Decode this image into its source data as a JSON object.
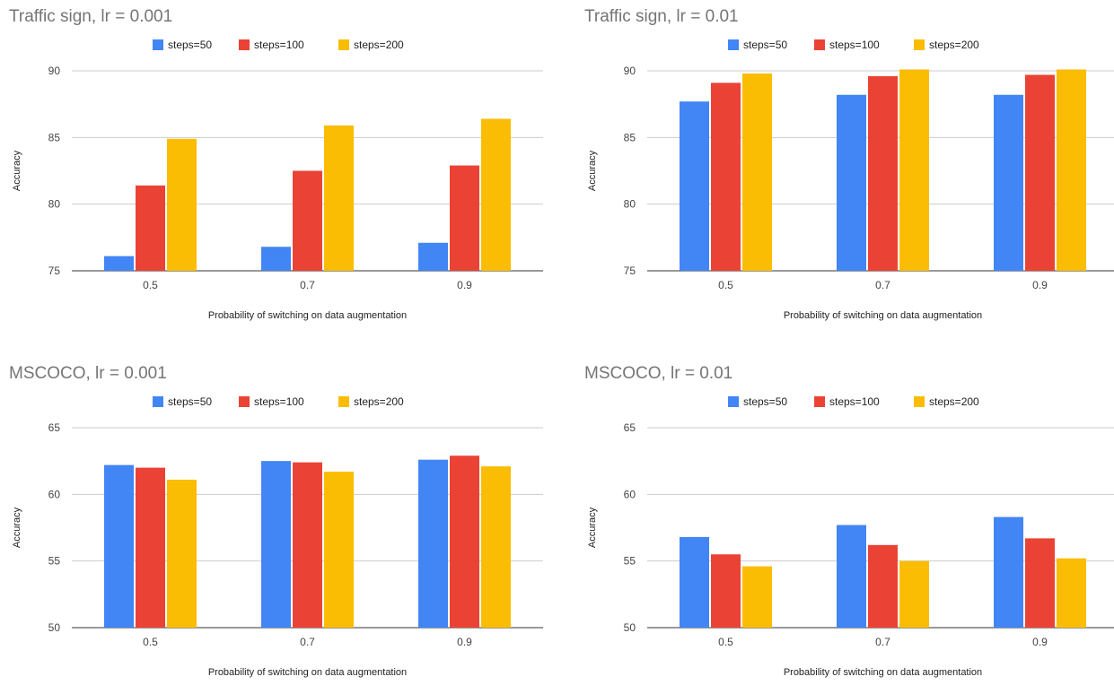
{
  "chart_data": [
    {
      "type": "bar",
      "title": "Traffic sign, lr = 0.001",
      "xlabel": "Probability of switching on data augmentation",
      "ylabel": "Accuracy",
      "categories": [
        "0.5",
        "0.7",
        "0.9"
      ],
      "ylim": [
        75,
        90
      ],
      "yticks": [
        75,
        80,
        85,
        90
      ],
      "grid": true,
      "legend_position": "top",
      "series": [
        {
          "name": "steps=50",
          "color": "#4285f4",
          "values": [
            76.1,
            76.8,
            77.1
          ]
        },
        {
          "name": "steps=100",
          "color": "#ea4335",
          "values": [
            81.4,
            82.5,
            82.9
          ]
        },
        {
          "name": "steps=200",
          "color": "#fbbc04",
          "values": [
            84.9,
            85.9,
            86.4
          ]
        }
      ]
    },
    {
      "type": "bar",
      "title": "Traffic sign, lr = 0.01",
      "xlabel": "Probability of switching on data augmentation",
      "ylabel": "Accuracy",
      "categories": [
        "0.5",
        "0.7",
        "0.9"
      ],
      "ylim": [
        75,
        90
      ],
      "yticks": [
        75,
        80,
        85,
        90
      ],
      "grid": true,
      "legend_position": "top",
      "series": [
        {
          "name": "steps=50",
          "color": "#4285f4",
          "values": [
            87.7,
            88.2,
            88.2
          ]
        },
        {
          "name": "steps=100",
          "color": "#ea4335",
          "values": [
            89.1,
            89.6,
            89.7
          ]
        },
        {
          "name": "steps=200",
          "color": "#fbbc04",
          "values": [
            89.8,
            90.1,
            90.1
          ]
        }
      ]
    },
    {
      "type": "bar",
      "title": "MSCOCO, lr = 0.001",
      "xlabel": "Probability of switching on data augmentation",
      "ylabel": "Accuracy",
      "categories": [
        "0.5",
        "0.7",
        "0.9"
      ],
      "ylim": [
        50,
        65
      ],
      "yticks": [
        50,
        55,
        60,
        65
      ],
      "grid": true,
      "legend_position": "top",
      "series": [
        {
          "name": "steps=50",
          "color": "#4285f4",
          "values": [
            62.2,
            62.5,
            62.6
          ]
        },
        {
          "name": "steps=100",
          "color": "#ea4335",
          "values": [
            62.0,
            62.4,
            62.9
          ]
        },
        {
          "name": "steps=200",
          "color": "#fbbc04",
          "values": [
            61.1,
            61.7,
            62.1
          ]
        }
      ]
    },
    {
      "type": "bar",
      "title": "MSCOCO, lr = 0.01",
      "xlabel": "Probability of switching on data augmentation",
      "ylabel": "Accuracy",
      "categories": [
        "0.5",
        "0.7",
        "0.9"
      ],
      "ylim": [
        50,
        65
      ],
      "yticks": [
        50,
        55,
        60,
        65
      ],
      "grid": true,
      "legend_position": "top",
      "series": [
        {
          "name": "steps=50",
          "color": "#4285f4",
          "values": [
            56.8,
            57.7,
            58.3
          ]
        },
        {
          "name": "steps=100",
          "color": "#ea4335",
          "values": [
            55.5,
            56.2,
            56.7
          ]
        },
        {
          "name": "steps=200",
          "color": "#fbbc04",
          "values": [
            54.6,
            55.0,
            55.2
          ]
        }
      ]
    }
  ]
}
